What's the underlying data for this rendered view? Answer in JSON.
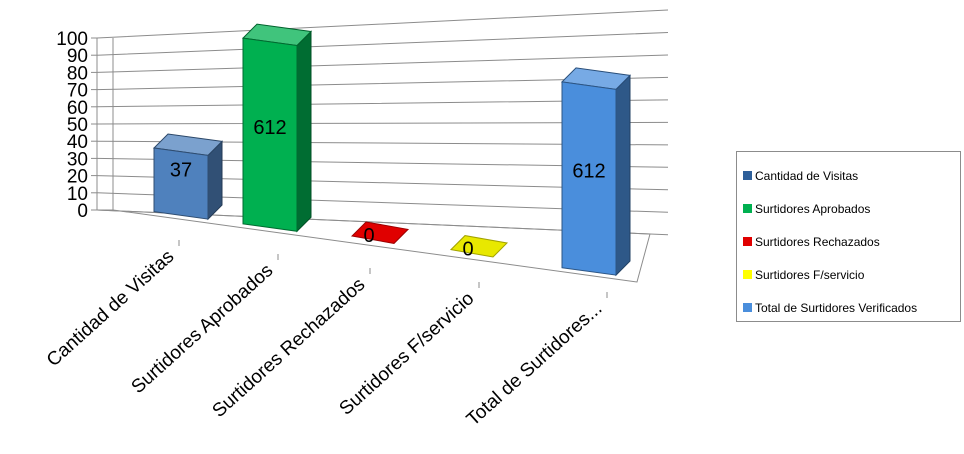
{
  "chart_data": {
    "type": "bar",
    "title": "",
    "xlabel": "",
    "ylabel": "",
    "ylim": [
      0,
      100
    ],
    "y_ticks": [
      0,
      10,
      20,
      30,
      40,
      50,
      60,
      70,
      80,
      90,
      100
    ],
    "grid": true,
    "legend_position": "right",
    "categories": [
      "Cantidad de Visitas",
      "Surtidores Aprobados",
      "Surtidores Rechazados",
      "Surtidores F/servicio",
      "Total de Surtidores..."
    ],
    "values": [
      37,
      612,
      0,
      0,
      612
    ],
    "data_labels": [
      "37",
      "612",
      "0",
      "0",
      "612"
    ],
    "colors": [
      "#4f81bd",
      "#00b050",
      "#e00000",
      "#e8e800",
      "#4a8edc"
    ],
    "legend": [
      {
        "label": "Cantidad de Visitas",
        "color": "#2e5f9a"
      },
      {
        "label": "Surtidores Aprobados",
        "color": "#00b050"
      },
      {
        "label": "Surtidores Rechazados",
        "color": "#e00000"
      },
      {
        "label": "Surtidores F/servicio",
        "color": "#ffff00"
      },
      {
        "label": "Total de Surtidores Verificados",
        "color": "#4a8edc"
      }
    ]
  }
}
